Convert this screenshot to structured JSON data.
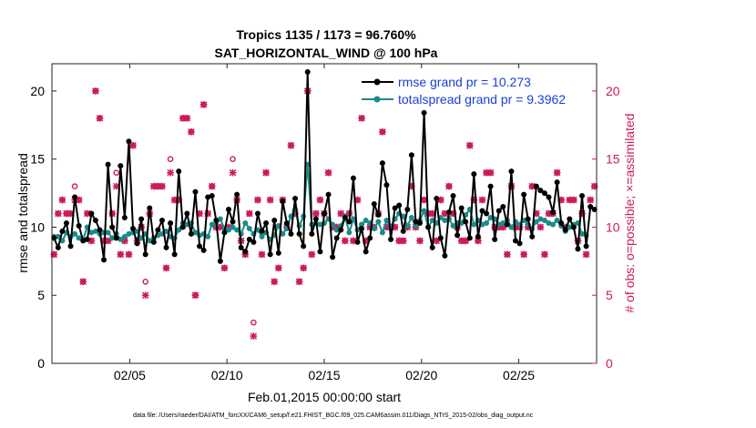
{
  "chart_data": {
    "type": "line",
    "title_line1": "Tropics 1135 / 1173 = 96.760%",
    "title_line2": "SAT_HORIZONTAL_WIND @ 100 hPa",
    "xlabel": "Feb.01,2015 00:00:00 start",
    "ylabel_left": "rmse and totalspread",
    "ylabel_right": "# of obs: o=possible; ×=assimilated",
    "xlim": [
      1,
      29
    ],
    "ylim_left": [
      0,
      22
    ],
    "ylim_right": [
      0,
      22
    ],
    "x_ticks": [
      5,
      10,
      15,
      20,
      25
    ],
    "x_tick_labels": [
      "02/05",
      "02/10",
      "02/15",
      "02/20",
      "02/25"
    ],
    "y_ticks_left": [
      0,
      5,
      10,
      15,
      20
    ],
    "y_ticks_right": [
      0,
      5,
      10,
      15,
      20
    ],
    "footnote": "data file: /Users/raeder/DAI/ATM_forcXX/CAM6_setup/f.e21.FHIST_BGC.f09_025.CAM6assim.011/Diags_NTrS_2015-02/obs_diag_output.nc",
    "colors": {
      "rmse": "#000000",
      "spread": "#1a8a8a",
      "obs": "#cc1b5a",
      "legend_text": "#1a3fd6"
    },
    "series": [
      {
        "name": "rmse grand pr = 10.273",
        "key": "rmse",
        "values": [
          9.2,
          8.5,
          9.7,
          10.3,
          8.6,
          12.2,
          10.1,
          9.0,
          9.1,
          11.0,
          10.5,
          9.8,
          7.6,
          14.6,
          10.0,
          9.2,
          14.5,
          10.7,
          16.3,
          9.9,
          8.8,
          10.6,
          8.0,
          11.4,
          8.9,
          9.8,
          10.5,
          8.5,
          10.3,
          8.0,
          14.1,
          10.0,
          11.0,
          9.5,
          12.6,
          8.6,
          8.3,
          12.2,
          12.3,
          10.5,
          7.5,
          9.6,
          11.3,
          10.4,
          12.4,
          8.5,
          8.2,
          9.1,
          8.9,
          11.0,
          9.7,
          10.3,
          8.0,
          10.5,
          8.1,
          11.9,
          10.3,
          9.5,
          12.1,
          9.5,
          8.6,
          21.4,
          9.5,
          10.6,
          8.2,
          11.0,
          12.4,
          7.8,
          9.2,
          9.8,
          10.7,
          10.4,
          13.6,
          8.9,
          9.9,
          8.2,
          9.2,
          11.7,
          10.9,
          14.7,
          13.1,
          9.1,
          11.4,
          11.6,
          9.7,
          11.3,
          15.3,
          10.4,
          10.3,
          18.4,
          10.0,
          8.5,
          12.1,
          9.2,
          7.9,
          11.1,
          12.3,
          9.4,
          11.4,
          10.4,
          9.2,
          13.9,
          9.3,
          11.2,
          11.0,
          13.0,
          9.1,
          11.2,
          11.5,
          10.2,
          14.1,
          9.0,
          8.8,
          12.4,
          10.6,
          9.3,
          13.0,
          12.7,
          12.5,
          12.2,
          11.1,
          13.3,
          10.3,
          9.8,
          10.6,
          10.0,
          8.4,
          12.3,
          8.6,
          11.5,
          11.3
        ]
      },
      {
        "name": "totalspread grand pr = 9.3962",
        "key": "spread",
        "values": [
          9.3,
          9.3,
          9.0,
          9.6,
          9.3,
          9.5,
          9.2,
          9.1,
          10.0,
          9.6,
          9.7,
          9.5,
          9.6,
          9.6,
          9.2,
          9.5,
          9.1,
          9.3,
          9.5,
          9.6,
          9.7,
          9.2,
          9.5,
          9.0,
          9.2,
          9.4,
          9.5,
          9.7,
          9.3,
          9.2,
          9.8,
          10.3,
          10.2,
          10.3,
          9.6,
          9.4,
          9.5,
          9.3,
          10.2,
          10.2,
          10.6,
          9.9,
          9.8,
          10.0,
          9.8,
          9.5,
          10.3,
          9.9,
          9.5,
          9.8,
          9.3,
          9.6,
          9.1,
          9.4,
          10.1,
          9.5,
          9.9,
          10.8,
          11.3,
          10.1,
          10.8,
          14.6,
          10.2,
          10.3,
          10.2,
          10.3,
          10.6,
          10.2,
          9.8,
          10.1,
          10.8,
          9.6,
          10.6,
          9.8,
          10.2,
          10.5,
          10.3,
          9.9,
          10.4,
          9.6,
          10.5,
          10.0,
          10.6,
          11.0,
          10.8,
          10.1,
          10.7,
          10.1,
          10.5,
          11.2,
          10.0,
          10.5,
          10.3,
          10.7,
          10.5,
          10.6,
          10.1,
          10.3,
          10.3,
          10.9,
          11.3,
          10.2,
          10.5,
          10.2,
          10.3,
          10.7,
          10.6,
          10.2,
          10.3,
          10.5,
          10.0,
          10.4,
          10.2,
          10.5,
          10.2,
          9.9,
          10.4,
          10.6,
          10.5,
          10.3,
          10.2,
          10.5,
          10.1,
          9.7,
          10.0,
          10.2,
          10.3,
          9.5,
          9.4
        ]
      },
      {
        "name": "possible",
        "key": "possible",
        "values": [
          8,
          11,
          12,
          11,
          11,
          13,
          12,
          6,
          11,
          9,
          20,
          18,
          9,
          9,
          11,
          14,
          8,
          9,
          8,
          16,
          9,
          10,
          6,
          11,
          13,
          13,
          13,
          7,
          15,
          12,
          12,
          18,
          18,
          17,
          5,
          11,
          19,
          11,
          13,
          10,
          10,
          7,
          10,
          15,
          12,
          9,
          8,
          11,
          3,
          12,
          8,
          14,
          12,
          6,
          7,
          12,
          10,
          16,
          11,
          6,
          7,
          20,
          8,
          11,
          12,
          11,
          14,
          10,
          10,
          11,
          9,
          11,
          9,
          12,
          18,
          9,
          10,
          10,
          11,
          17,
          10,
          10,
          10,
          9,
          9,
          10,
          13,
          10,
          9,
          12,
          11,
          11,
          9,
          12,
          11,
          13,
          11,
          10,
          9,
          9,
          16,
          12,
          9,
          12,
          14,
          14,
          10,
          10,
          10,
          8,
          13,
          10,
          10,
          8,
          10,
          13,
          11,
          10,
          8,
          11,
          11,
          14,
          12,
          10,
          12,
          12,
          9,
          11,
          8,
          12,
          13
        ]
      },
      {
        "name": "assimilated",
        "key": "assimilated",
        "values": [
          8,
          11,
          12,
          11,
          11,
          12,
          12,
          6,
          11,
          9,
          20,
          18,
          9,
          9,
          11,
          13,
          8,
          9,
          8,
          16,
          9,
          10,
          5,
          11,
          13,
          13,
          13,
          7,
          14,
          12,
          12,
          18,
          18,
          17,
          5,
          11,
          19,
          11,
          13,
          10,
          10,
          7,
          10,
          14,
          12,
          9,
          8,
          11,
          2,
          12,
          8,
          14,
          12,
          6,
          7,
          12,
          10,
          16,
          11,
          6,
          7,
          20,
          8,
          11,
          12,
          11,
          14,
          10,
          10,
          11,
          9,
          11,
          9,
          12,
          18,
          9,
          10,
          10,
          11,
          17,
          10,
          10,
          10,
          9,
          9,
          10,
          13,
          10,
          9,
          12,
          11,
          11,
          9,
          12,
          11,
          13,
          11,
          10,
          9,
          9,
          16,
          12,
          9,
          12,
          14,
          14,
          10,
          10,
          10,
          8,
          13,
          10,
          10,
          8,
          10,
          13,
          11,
          10,
          8,
          11,
          11,
          14,
          12,
          10,
          12,
          12,
          9,
          11,
          8,
          12,
          13
        ]
      }
    ]
  }
}
